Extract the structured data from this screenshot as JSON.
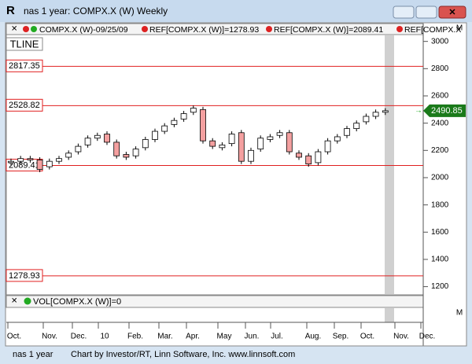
{
  "window_title": "nas 1 year: COMPX.X (W) Weekly",
  "legend": [
    "COMPX.X (W)-09/25/09",
    "REF[COMPX.X (W)]=1278.93",
    "REF[COMPX.X (W)]=2089.41",
    "REF[COMPX.X"
  ],
  "tline": "TLINE",
  "chart_data": {
    "type": "candlestick",
    "open": [
      2110,
      2120,
      2140,
      2130,
      2080,
      2120,
      2150,
      2190,
      2240,
      2290,
      2320,
      2260,
      2170,
      2160,
      2220,
      2280,
      2340,
      2390,
      2430,
      2480,
      2500,
      2270,
      2220,
      2250,
      2330,
      2120,
      2210,
      2280,
      2310,
      2330,
      2180,
      2160,
      2110,
      2190,
      2270,
      2310,
      2360,
      2410,
      2450,
      2480
    ],
    "high": [
      2140,
      2160,
      2160,
      2150,
      2140,
      2160,
      2200,
      2250,
      2310,
      2330,
      2340,
      2280,
      2190,
      2230,
      2300,
      2360,
      2400,
      2440,
      2490,
      2530,
      2520,
      2290,
      2260,
      2340,
      2350,
      2220,
      2310,
      2320,
      2350,
      2350,
      2200,
      2180,
      2210,
      2290,
      2320,
      2380,
      2420,
      2470,
      2500,
      2510
    ],
    "low": [
      2090,
      2100,
      2110,
      2040,
      2060,
      2100,
      2130,
      2170,
      2220,
      2270,
      2240,
      2140,
      2130,
      2140,
      2200,
      2260,
      2320,
      2370,
      2410,
      2460,
      2250,
      2210,
      2200,
      2230,
      2100,
      2100,
      2190,
      2260,
      2290,
      2170,
      2130,
      2080,
      2090,
      2170,
      2250,
      2290,
      2340,
      2390,
      2430,
      2460
    ],
    "close": [
      2120,
      2140,
      2130,
      2060,
      2120,
      2140,
      2180,
      2230,
      2290,
      2310,
      2260,
      2160,
      2150,
      2210,
      2280,
      2340,
      2380,
      2420,
      2470,
      2510,
      2270,
      2230,
      2240,
      2320,
      2120,
      2200,
      2290,
      2300,
      2330,
      2190,
      2150,
      2100,
      2190,
      2270,
      2300,
      2360,
      2400,
      2450,
      2480,
      2491
    ],
    "up_color": "#ffffff",
    "down_color": "#f4a0a0",
    "ylim": [
      1140,
      3050
    ],
    "yticks": [
      1200,
      1400,
      1600,
      1800,
      2000,
      2200,
      2400,
      2600,
      2800,
      3000
    ],
    "ref_lines": [
      2817.35,
      2528.82,
      2089.41,
      1278.93
    ],
    "ref_color": "#e02020",
    "last_value": 2490.85,
    "x_labels": [
      "Oct.",
      "Nov.",
      "Dec.",
      "10",
      "Feb.",
      "Mar.",
      "Apr.",
      "May",
      "Jun.",
      "Jul.",
      "Aug.",
      "Sep.",
      "Oct.",
      "Nov.",
      "Dec."
    ],
    "volume_label": "VOL[COMPX.X (W)]=0"
  },
  "status": [
    "nas 1 year",
    "Chart by Investor/RT, Linn Software, Inc. www.linnsoft.com"
  ]
}
